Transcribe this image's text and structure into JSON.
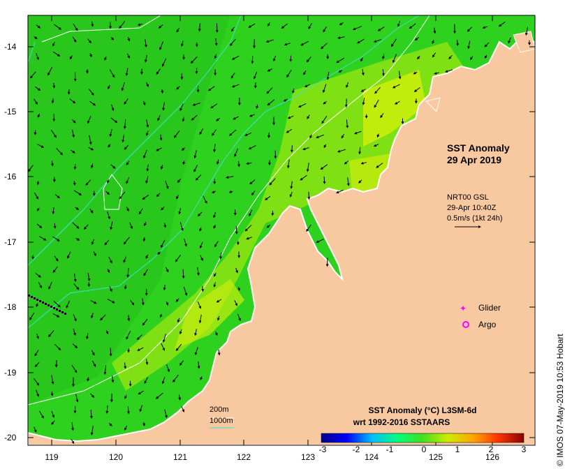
{
  "map": {
    "title_line1": "SST Anomaly",
    "title_line2": "29 Apr 2019",
    "current_source": "NRT00 GSL",
    "current_time": "29-Apr 10:40Z",
    "current_scale": "0.5m/s (1kt 24h)",
    "legend": {
      "glider_label": "Glider",
      "argo_label": "Argo",
      "glider_color": "#ff00ff",
      "argo_color": "#ff00ff"
    },
    "depth_contours": {
      "label_200m": "200m",
      "label_1000m": "1000m",
      "color_200m": "#ffffff",
      "color_1000m": "#40e0d0"
    },
    "y_axis": {
      "ticks": [
        "-14",
        "-15",
        "-16",
        "-17",
        "-18",
        "-19",
        "-20"
      ]
    },
    "x_axis": {
      "ticks": [
        "119",
        "120",
        "121",
        "122",
        "123",
        "124",
        "125",
        "126"
      ]
    },
    "colorbar": {
      "title_line1": "SST Anomaly (°C) L3SM-6d",
      "title_line2": "wrt 1992-2016 SSTAARS",
      "ticks": [
        "-3",
        "-2",
        "-1",
        "0",
        "1",
        "2",
        "3"
      ],
      "colors": [
        "#00008b",
        "#0000ff",
        "#00bfff",
        "#00ff80",
        "#40e020",
        "#ccee00",
        "#ffa500",
        "#ff3300",
        "#8b0000"
      ]
    },
    "credit": "© IMOS 07-May-2019 10:53 Hobart",
    "colors": {
      "land": "#f8c8a0",
      "ocean_base": "#2ed21e",
      "ocean_warm": "#9be612",
      "ocean_hot": "#d7ef0a"
    }
  }
}
